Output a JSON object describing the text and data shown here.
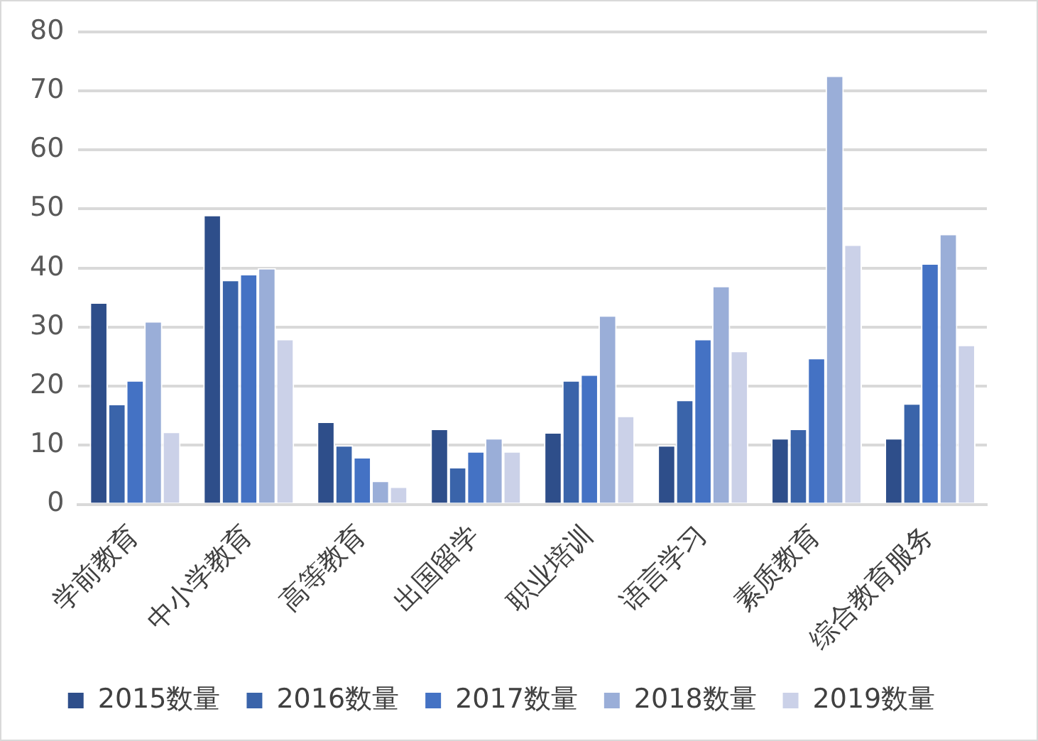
{
  "chart_data": {
    "type": "bar",
    "categories": [
      "学前教育",
      "中小学教育",
      "高等教育",
      "出国留学",
      "职业培训",
      "语言学习",
      "素质教育",
      "综合教育服务"
    ],
    "series": [
      {
        "name": "2015数量",
        "color": "#2e4e8a",
        "values": [
          34.2,
          49,
          14,
          12.8,
          12.2,
          10,
          11.2,
          11.2
        ]
      },
      {
        "name": "2016数量",
        "color": "#3a64aa",
        "values": [
          17,
          38,
          10,
          6.3,
          21,
          17.7,
          12.8,
          17.1
        ]
      },
      {
        "name": "2017数量",
        "color": "#4472c4",
        "values": [
          21,
          39,
          8,
          9,
          22,
          28,
          24.8,
          40.8
        ]
      },
      {
        "name": "2018数量",
        "color": "#9aaed8",
        "values": [
          31,
          40,
          4,
          11.2,
          32,
          37,
          72.6,
          45.8
        ]
      },
      {
        "name": "2019数量",
        "color": "#cbd1e8",
        "values": [
          12.3,
          28,
          3,
          9,
          15,
          26,
          44,
          27
        ]
      }
    ],
    "ylim": [
      0,
      80
    ],
    "yticks": [
      0,
      10,
      20,
      30,
      40,
      50,
      60,
      70,
      80
    ],
    "grid": "y",
    "legend": "bottom"
  }
}
